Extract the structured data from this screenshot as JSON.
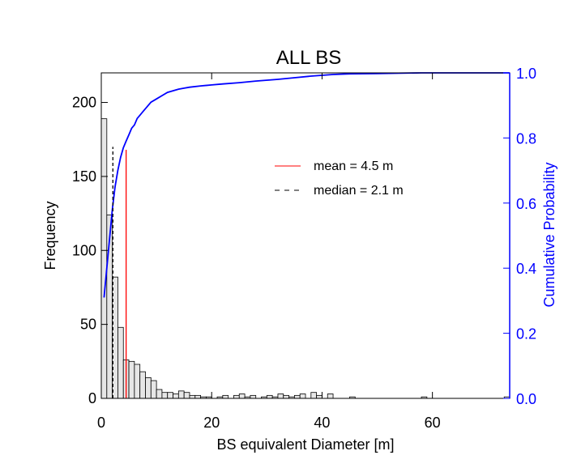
{
  "chart_data": {
    "type": "bar",
    "title": "ALL BS",
    "xlabel": "BS equivalent Diameter [m]",
    "ylabel": "Frequency",
    "y2label": "Cumulative Probability",
    "xlim": [
      0,
      74
    ],
    "ylim": [
      0,
      220
    ],
    "y2lim": [
      0,
      1.0
    ],
    "xticks": [
      "0",
      "20",
      "40",
      "60"
    ],
    "yticks": [
      "0",
      "50",
      "100",
      "150",
      "200"
    ],
    "y2ticks": [
      "0.0",
      "0.2",
      "0.4",
      "0.6",
      "0.8",
      "1.0"
    ],
    "bin_width": 1,
    "histogram": {
      "bin_starts": [
        0,
        1,
        2,
        3,
        4,
        5,
        6,
        7,
        8,
        9,
        10,
        11,
        12,
        13,
        14,
        15,
        16,
        17,
        18,
        19,
        20,
        21,
        22,
        23,
        24,
        25,
        26,
        27,
        28,
        29,
        30,
        31,
        32,
        33,
        34,
        35,
        36,
        37,
        38,
        39,
        40,
        41,
        42,
        43,
        44,
        45,
        46,
        47,
        48,
        49,
        50,
        51,
        52,
        53,
        54,
        55,
        56,
        57,
        58,
        59,
        60,
        61,
        62,
        63,
        64,
        65,
        66,
        67,
        68,
        69,
        70,
        71,
        72,
        73
      ],
      "values": [
        189,
        124,
        82,
        48,
        26,
        25,
        23,
        18,
        14,
        12,
        6,
        4,
        4,
        3,
        5,
        4,
        2,
        2,
        1,
        1,
        0,
        1,
        2,
        0,
        2,
        3,
        1,
        2,
        0,
        1,
        2,
        1,
        3,
        2,
        1,
        2,
        3,
        0,
        4,
        2,
        0,
        3,
        0,
        0,
        0,
        1,
        0,
        0,
        0,
        0,
        0,
        0,
        0,
        0,
        0,
        0,
        0,
        0,
        1,
        0,
        0,
        0,
        0,
        0,
        0,
        0,
        0,
        0,
        0,
        0,
        0,
        0,
        0,
        1
      ]
    },
    "series": [
      {
        "name": "Cumulative Probability",
        "axis": "right",
        "color": "#0000ff",
        "x": [
          0.5,
          1.0,
          1.5,
          2.0,
          2.5,
          3.0,
          3.5,
          4.0,
          4.5,
          5.0,
          5.5,
          6.0,
          6.5,
          7.0,
          7.5,
          8.0,
          9.0,
          10.0,
          11.0,
          12.0,
          13.0,
          14.0,
          15.0,
          16.0,
          18.0,
          20.0,
          22.0,
          25.0,
          28.0,
          32.0,
          35.0,
          38.0,
          42.0,
          45.0,
          50.0,
          58.0,
          65.0,
          74.0
        ],
        "y": [
          0.31,
          0.4,
          0.49,
          0.58,
          0.65,
          0.7,
          0.74,
          0.77,
          0.79,
          0.81,
          0.83,
          0.84,
          0.86,
          0.87,
          0.88,
          0.89,
          0.91,
          0.92,
          0.93,
          0.94,
          0.945,
          0.95,
          0.953,
          0.956,
          0.96,
          0.963,
          0.966,
          0.97,
          0.975,
          0.98,
          0.985,
          0.99,
          0.995,
          0.997,
          0.998,
          1.0,
          1.0,
          1.0
        ]
      }
    ],
    "vlines": [
      {
        "label": "mean  = 4.5 m",
        "x": 4.5,
        "y_top": 168,
        "color": "#ff0000",
        "style": "solid"
      },
      {
        "label": "median = 2.1 m",
        "x": 2.1,
        "y_top": 170,
        "color": "#000000",
        "style": "dashed"
      }
    ],
    "legend_position": "upper-center",
    "grid": false
  }
}
